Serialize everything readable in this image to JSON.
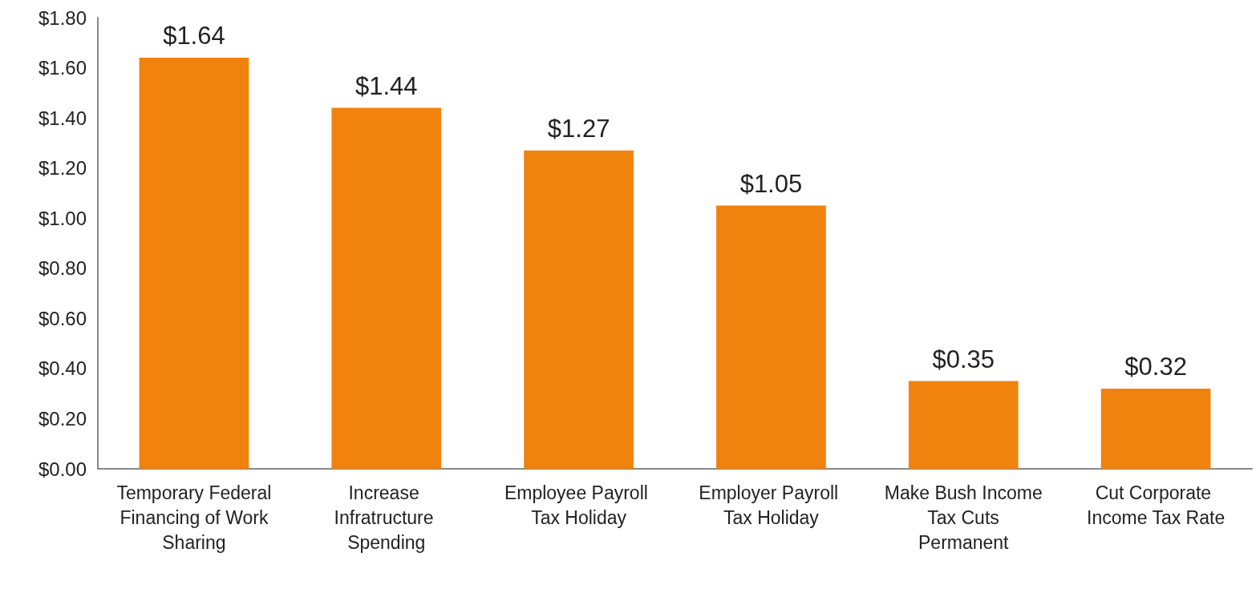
{
  "chart_data": {
    "type": "bar",
    "categories": [
      "Temporary Federal Financing of Work Sharing",
      "Increase Infratructure Spending",
      "Employee Payroll Tax Holiday",
      "Employer Payroll Tax Holiday",
      "Make Bush Income Tax Cuts Permanent",
      "Cut Corporate Income Tax Rate"
    ],
    "values": [
      1.64,
      1.44,
      1.27,
      1.05,
      0.35,
      0.32
    ],
    "value_labels": [
      "$1.64",
      "$1.44",
      "$1.27",
      "$1.05",
      "$0.35",
      "$0.32"
    ],
    "color": "#f0820e",
    "ylim": [
      0,
      1.8
    ],
    "yticks": [
      {
        "value": 0,
        "label": "$0.00"
      },
      {
        "value": 0.2,
        "label": "$0.20"
      },
      {
        "value": 0.4,
        "label": "$0.40"
      },
      {
        "value": 0.6,
        "label": "$0.60"
      },
      {
        "value": 0.8,
        "label": "$0.80"
      },
      {
        "value": 1.0,
        "label": "$1.00"
      },
      {
        "value": 1.2,
        "label": "$1.20"
      },
      {
        "value": 1.4,
        "label": "$1.40"
      },
      {
        "value": 1.6,
        "label": "$1.60"
      },
      {
        "value": 1.8,
        "label": "$1.80"
      }
    ],
    "grid": false
  }
}
